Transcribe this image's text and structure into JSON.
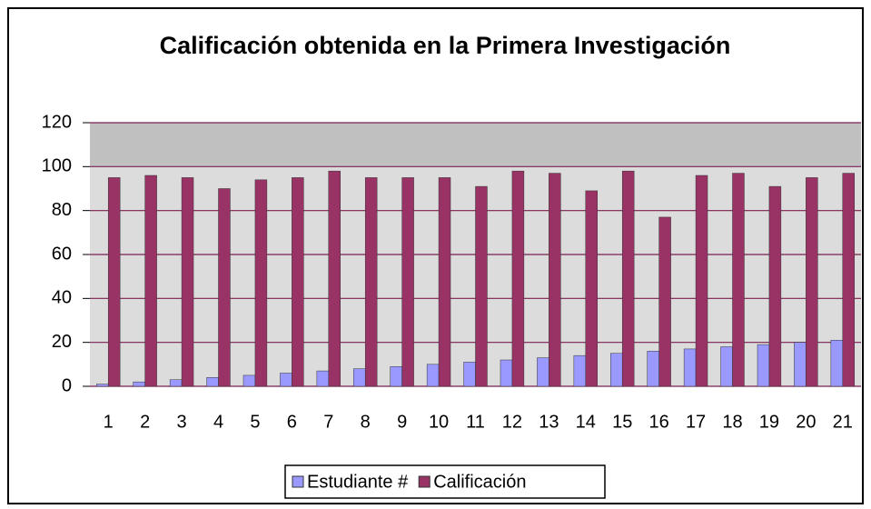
{
  "chart_data": {
    "type": "bar",
    "title": "Calificación obtenida en la Primera Investigación",
    "categories": [
      "1",
      "2",
      "3",
      "4",
      "5",
      "6",
      "7",
      "8",
      "9",
      "10",
      "11",
      "12",
      "13",
      "14",
      "15",
      "16",
      "17",
      "18",
      "19",
      "20",
      "21"
    ],
    "series": [
      {
        "name": "Estudiante #",
        "color": "#9999ff",
        "values": [
          1,
          2,
          3,
          4,
          5,
          6,
          7,
          8,
          9,
          10,
          11,
          12,
          13,
          14,
          15,
          16,
          17,
          18,
          19,
          20,
          21
        ]
      },
      {
        "name": "Calificación",
        "color": "#993366",
        "values": [
          95,
          96,
          95,
          90,
          94,
          95,
          98,
          95,
          95,
          95,
          91,
          98,
          97,
          89,
          98,
          77,
          96,
          97,
          91,
          95,
          97
        ]
      }
    ],
    "ylim": [
      0,
      120
    ],
    "yticks": [
      0,
      20,
      40,
      60,
      80,
      100,
      120
    ],
    "grid": true,
    "legend": "bottom"
  }
}
